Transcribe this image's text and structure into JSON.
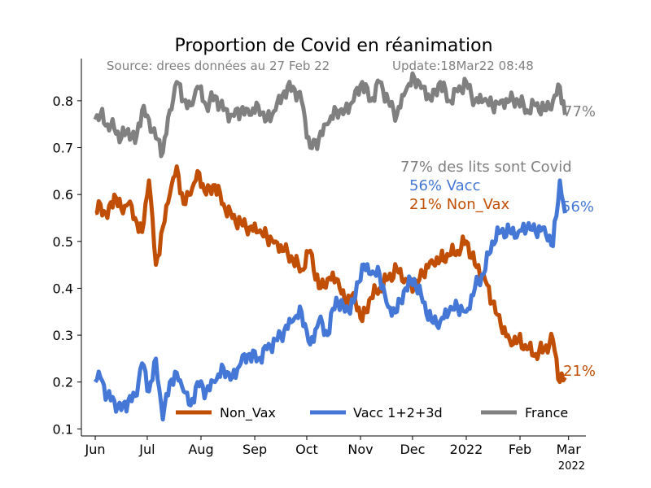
{
  "chart_data": {
    "type": "line",
    "title": "Proportion de Covid en réanimation",
    "source_note": "Source: drees données au 27 Feb 22",
    "update_note": "Update:18Mar22 08:48",
    "annotations": {
      "total": "77% des lits sont Covid",
      "vacc": "56% Vacc",
      "nonvax": "21% Non_Vax"
    },
    "end_labels": {
      "france": "77%",
      "vacc": "56%",
      "nonvax": "21%"
    },
    "x_start": "2021-06-01",
    "x_end": "2022-02-27",
    "xlim": [
      "2021-05-24",
      "2022-03-11"
    ],
    "ylim": [
      0.085,
      0.89
    ],
    "y_ticks": [
      "0.1",
      "0.2",
      "0.3",
      "0.4",
      "0.5",
      "0.6",
      "0.7",
      "0.8"
    ],
    "x_ticks": [
      {
        "date": "2021-06-01",
        "label": "Jun"
      },
      {
        "date": "2021-07-01",
        "label": "Jul"
      },
      {
        "date": "2021-08-01",
        "label": "Aug"
      },
      {
        "date": "2021-09-01",
        "label": "Sep"
      },
      {
        "date": "2021-10-01",
        "label": "Oct"
      },
      {
        "date": "2021-11-01",
        "label": "Nov"
      },
      {
        "date": "2021-12-01",
        "label": "Dec"
      },
      {
        "date": "2022-01-01",
        "label": "2022"
      },
      {
        "date": "2022-02-01",
        "label": "Feb"
      },
      {
        "date": "2022-03-01",
        "label": "Mar"
      }
    ],
    "x_offset_label": "2022",
    "legend_position": "lower-center",
    "grid": false,
    "series": [
      {
        "name": "Non_Vax",
        "color": "#c04e04",
        "points": [
          [
            "2021-06-01",
            0.56
          ],
          [
            "2021-06-04",
            0.58
          ],
          [
            "2021-06-08",
            0.55
          ],
          [
            "2021-06-12",
            0.6
          ],
          [
            "2021-06-16",
            0.57
          ],
          [
            "2021-06-20",
            0.58
          ],
          [
            "2021-06-24",
            0.55
          ],
          [
            "2021-06-28",
            0.52
          ],
          [
            "2021-07-02",
            0.63
          ],
          [
            "2021-07-06",
            0.45
          ],
          [
            "2021-07-10",
            0.53
          ],
          [
            "2021-07-14",
            0.6
          ],
          [
            "2021-07-18",
            0.66
          ],
          [
            "2021-07-22",
            0.58
          ],
          [
            "2021-07-26",
            0.6
          ],
          [
            "2021-07-30",
            0.65
          ],
          [
            "2021-08-04",
            0.6
          ],
          [
            "2021-08-09",
            0.62
          ],
          [
            "2021-08-14",
            0.58
          ],
          [
            "2021-08-19",
            0.55
          ],
          [
            "2021-08-24",
            0.54
          ],
          [
            "2021-08-29",
            0.53
          ],
          [
            "2021-09-03",
            0.52
          ],
          [
            "2021-09-08",
            0.51
          ],
          [
            "2021-09-13",
            0.5
          ],
          [
            "2021-09-18",
            0.48
          ],
          [
            "2021-09-23",
            0.46
          ],
          [
            "2021-09-28",
            0.44
          ],
          [
            "2021-10-03",
            0.48
          ],
          [
            "2021-10-08",
            0.4
          ],
          [
            "2021-10-13",
            0.42
          ],
          [
            "2021-10-18",
            0.42
          ],
          [
            "2021-10-23",
            0.37
          ],
          [
            "2021-10-28",
            0.39
          ],
          [
            "2021-11-02",
            0.33
          ],
          [
            "2021-11-07",
            0.38
          ],
          [
            "2021-11-12",
            0.4
          ],
          [
            "2021-11-17",
            0.42
          ],
          [
            "2021-11-22",
            0.44
          ],
          [
            "2021-11-27",
            0.42
          ],
          [
            "2021-12-02",
            0.4
          ],
          [
            "2021-12-07",
            0.43
          ],
          [
            "2021-12-12",
            0.46
          ],
          [
            "2021-12-17",
            0.46
          ],
          [
            "2021-12-22",
            0.47
          ],
          [
            "2021-12-27",
            0.48
          ],
          [
            "2022-01-01",
            0.5
          ],
          [
            "2022-01-06",
            0.45
          ],
          [
            "2022-01-11",
            0.43
          ],
          [
            "2022-01-16",
            0.37
          ],
          [
            "2022-01-21",
            0.32
          ],
          [
            "2022-01-26",
            0.29
          ],
          [
            "2022-01-31",
            0.29
          ],
          [
            "2022-02-05",
            0.27
          ],
          [
            "2022-02-10",
            0.26
          ],
          [
            "2022-02-15",
            0.27
          ],
          [
            "2022-02-20",
            0.29
          ],
          [
            "2022-02-24",
            0.2
          ],
          [
            "2022-02-27",
            0.21
          ]
        ]
      },
      {
        "name": "Vacc 1+2+3d",
        "color": "#4477d6",
        "points": [
          [
            "2021-06-01",
            0.2
          ],
          [
            "2021-06-04",
            0.21
          ],
          [
            "2021-06-08",
            0.17
          ],
          [
            "2021-06-12",
            0.16
          ],
          [
            "2021-06-16",
            0.14
          ],
          [
            "2021-06-20",
            0.16
          ],
          [
            "2021-06-24",
            0.17
          ],
          [
            "2021-06-28",
            0.24
          ],
          [
            "2021-07-02",
            0.18
          ],
          [
            "2021-07-06",
            0.25
          ],
          [
            "2021-07-10",
            0.12
          ],
          [
            "2021-07-14",
            0.2
          ],
          [
            "2021-07-18",
            0.22
          ],
          [
            "2021-07-22",
            0.18
          ],
          [
            "2021-07-26",
            0.15
          ],
          [
            "2021-07-30",
            0.2
          ],
          [
            "2021-08-04",
            0.18
          ],
          [
            "2021-08-09",
            0.2
          ],
          [
            "2021-08-14",
            0.23
          ],
          [
            "2021-08-19",
            0.21
          ],
          [
            "2021-08-24",
            0.24
          ],
          [
            "2021-08-29",
            0.26
          ],
          [
            "2021-09-03",
            0.25
          ],
          [
            "2021-09-08",
            0.27
          ],
          [
            "2021-09-13",
            0.29
          ],
          [
            "2021-09-18",
            0.31
          ],
          [
            "2021-09-23",
            0.33
          ],
          [
            "2021-09-28",
            0.35
          ],
          [
            "2021-10-03",
            0.28
          ],
          [
            "2021-10-08",
            0.33
          ],
          [
            "2021-10-13",
            0.3
          ],
          [
            "2021-10-18",
            0.38
          ],
          [
            "2021-10-23",
            0.35
          ],
          [
            "2021-10-28",
            0.37
          ],
          [
            "2021-11-02",
            0.45
          ],
          [
            "2021-11-07",
            0.43
          ],
          [
            "2021-11-12",
            0.43
          ],
          [
            "2021-11-17",
            0.36
          ],
          [
            "2021-11-22",
            0.35
          ],
          [
            "2021-11-27",
            0.4
          ],
          [
            "2021-12-02",
            0.42
          ],
          [
            "2021-12-07",
            0.37
          ],
          [
            "2021-12-12",
            0.33
          ],
          [
            "2021-12-17",
            0.33
          ],
          [
            "2021-12-22",
            0.35
          ],
          [
            "2021-12-27",
            0.36
          ],
          [
            "2022-01-01",
            0.35
          ],
          [
            "2022-01-06",
            0.4
          ],
          [
            "2022-01-11",
            0.43
          ],
          [
            "2022-01-16",
            0.5
          ],
          [
            "2022-01-21",
            0.52
          ],
          [
            "2022-01-26",
            0.52
          ],
          [
            "2022-01-31",
            0.52
          ],
          [
            "2022-02-05",
            0.53
          ],
          [
            "2022-02-10",
            0.52
          ],
          [
            "2022-02-15",
            0.53
          ],
          [
            "2022-02-20",
            0.49
          ],
          [
            "2022-02-24",
            0.63
          ],
          [
            "2022-02-27",
            0.56
          ]
        ]
      },
      {
        "name": "France",
        "color": "#808080",
        "points": [
          [
            "2021-06-01",
            0.76
          ],
          [
            "2021-06-04",
            0.77
          ],
          [
            "2021-06-08",
            0.75
          ],
          [
            "2021-06-12",
            0.74
          ],
          [
            "2021-06-16",
            0.72
          ],
          [
            "2021-06-20",
            0.74
          ],
          [
            "2021-06-24",
            0.71
          ],
          [
            "2021-06-28",
            0.78
          ],
          [
            "2021-07-02",
            0.76
          ],
          [
            "2021-07-06",
            0.72
          ],
          [
            "2021-07-10",
            0.69
          ],
          [
            "2021-07-14",
            0.78
          ],
          [
            "2021-07-18",
            0.84
          ],
          [
            "2021-07-22",
            0.8
          ],
          [
            "2021-07-26",
            0.79
          ],
          [
            "2021-07-30",
            0.83
          ],
          [
            "2021-08-04",
            0.79
          ],
          [
            "2021-08-09",
            0.81
          ],
          [
            "2021-08-14",
            0.78
          ],
          [
            "2021-08-19",
            0.77
          ],
          [
            "2021-08-24",
            0.78
          ],
          [
            "2021-08-29",
            0.77
          ],
          [
            "2021-09-03",
            0.79
          ],
          [
            "2021-09-08",
            0.76
          ],
          [
            "2021-09-13",
            0.78
          ],
          [
            "2021-09-18",
            0.82
          ],
          [
            "2021-09-23",
            0.83
          ],
          [
            "2021-09-28",
            0.8
          ],
          [
            "2021-10-03",
            0.7
          ],
          [
            "2021-10-08",
            0.72
          ],
          [
            "2021-10-13",
            0.75
          ],
          [
            "2021-10-18",
            0.78
          ],
          [
            "2021-10-23",
            0.78
          ],
          [
            "2021-10-28",
            0.8
          ],
          [
            "2021-11-02",
            0.84
          ],
          [
            "2021-11-07",
            0.8
          ],
          [
            "2021-11-12",
            0.84
          ],
          [
            "2021-11-17",
            0.8
          ],
          [
            "2021-11-22",
            0.77
          ],
          [
            "2021-11-27",
            0.82
          ],
          [
            "2021-12-02",
            0.85
          ],
          [
            "2021-12-07",
            0.83
          ],
          [
            "2021-12-12",
            0.8
          ],
          [
            "2021-12-17",
            0.84
          ],
          [
            "2021-12-22",
            0.8
          ],
          [
            "2021-12-27",
            0.82
          ],
          [
            "2022-01-01",
            0.84
          ],
          [
            "2022-01-06",
            0.8
          ],
          [
            "2022-01-11",
            0.8
          ],
          [
            "2022-01-16",
            0.79
          ],
          [
            "2022-01-21",
            0.8
          ],
          [
            "2022-01-26",
            0.8
          ],
          [
            "2022-01-31",
            0.8
          ],
          [
            "2022-02-05",
            0.78
          ],
          [
            "2022-02-10",
            0.79
          ],
          [
            "2022-02-15",
            0.78
          ],
          [
            "2022-02-20",
            0.8
          ],
          [
            "2022-02-24",
            0.83
          ],
          [
            "2022-02-27",
            0.77
          ]
        ]
      }
    ]
  }
}
